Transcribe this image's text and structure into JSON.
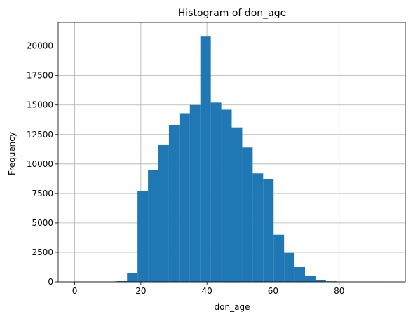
{
  "chart_data": {
    "type": "bar",
    "title": "Histogram of don_age",
    "xlabel": "don_age",
    "ylabel": "Frequency",
    "xlim": [
      -5,
      100
    ],
    "ylim": [
      0,
      22000
    ],
    "grid": true,
    "bar_color": "#1f77b4",
    "bin_width": 3.17,
    "x_ticks": [
      {
        "value": 0,
        "label": "0"
      },
      {
        "value": 20,
        "label": "20"
      },
      {
        "value": 40,
        "label": "40"
      },
      {
        "value": 60,
        "label": "60"
      },
      {
        "value": 80,
        "label": "80"
      }
    ],
    "y_ticks": [
      {
        "value": 0,
        "label": "0"
      },
      {
        "value": 2500,
        "label": "2500"
      },
      {
        "value": 5000,
        "label": "5000"
      },
      {
        "value": 7500,
        "label": "7500"
      },
      {
        "value": 10000,
        "label": "10000"
      },
      {
        "value": 12500,
        "label": "12500"
      },
      {
        "value": 15000,
        "label": "15000"
      },
      {
        "value": 17500,
        "label": "17500"
      },
      {
        "value": 20000,
        "label": "20000"
      }
    ],
    "bins": [
      {
        "x0": 0.0,
        "count": 30
      },
      {
        "x0": 3.17,
        "count": 25
      },
      {
        "x0": 6.33,
        "count": 25
      },
      {
        "x0": 9.5,
        "count": 30
      },
      {
        "x0": 12.67,
        "count": 60
      },
      {
        "x0": 15.83,
        "count": 750
      },
      {
        "x0": 19.0,
        "count": 7700
      },
      {
        "x0": 22.17,
        "count": 9500
      },
      {
        "x0": 25.33,
        "count": 11600
      },
      {
        "x0": 28.5,
        "count": 13300
      },
      {
        "x0": 31.67,
        "count": 14300
      },
      {
        "x0": 34.83,
        "count": 15000
      },
      {
        "x0": 38.0,
        "count": 20800
      },
      {
        "x0": 41.17,
        "count": 15200
      },
      {
        "x0": 44.33,
        "count": 14600
      },
      {
        "x0": 47.5,
        "count": 13100
      },
      {
        "x0": 50.67,
        "count": 11400
      },
      {
        "x0": 53.83,
        "count": 9200
      },
      {
        "x0": 57.0,
        "count": 8700
      },
      {
        "x0": 60.17,
        "count": 4000
      },
      {
        "x0": 63.33,
        "count": 2450
      },
      {
        "x0": 66.5,
        "count": 1250
      },
      {
        "x0": 69.67,
        "count": 480
      },
      {
        "x0": 72.83,
        "count": 170
      },
      {
        "x0": 76.0,
        "count": 50
      },
      {
        "x0": 79.17,
        "count": 20
      },
      {
        "x0": 82.33,
        "count": 10
      },
      {
        "x0": 85.5,
        "count": 5
      },
      {
        "x0": 88.67,
        "count": 5
      },
      {
        "x0": 91.83,
        "count": 5
      }
    ]
  }
}
